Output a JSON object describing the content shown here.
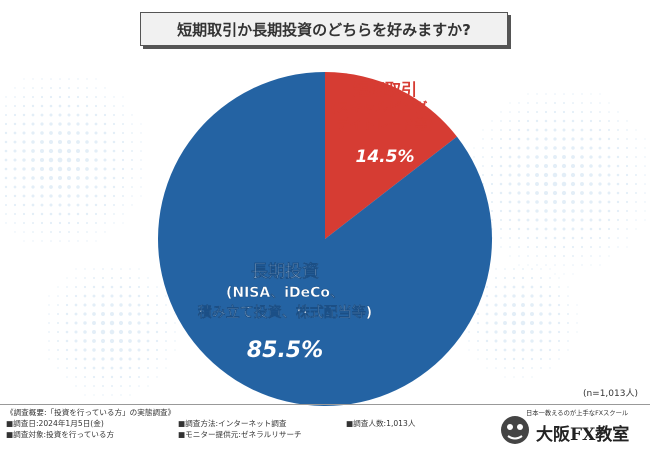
{
  "title": "短期取引か長期投資のどちらを好みますか?",
  "chart_data": {
    "type": "pie",
    "title": "短期取引か長期投資のどちらを好みますか?",
    "slices": [
      {
        "label_lines": [
          "短期取引",
          "(スキャルピング、",
          "デイトレード等)"
        ],
        "value": 14.5,
        "value_text": "14.5%",
        "color": "#d63c33"
      },
      {
        "label_lines": [
          "長期投資",
          "(NISA、iDeCo、",
          "積み立て投資、株式配当等)"
        ],
        "value": 85.5,
        "value_text": "85.5%",
        "color": "#2463a3"
      }
    ]
  },
  "sample_size": "(n=1,013人)",
  "footer": {
    "heading": "《調査概要:「投資を行っている方」の実態調査》",
    "date": "■調査日:2024年1月5日(金)",
    "method": "■調査方法:インターネット調査",
    "count": "■調査人数:1,013人",
    "target": "■調査対象:投資を行っている方",
    "provider": "■モニター提供元:ゼネラルリサーチ"
  },
  "brand": {
    "tagline": "日本一教えるのが上手なFXスクール",
    "name": "大阪FX教室"
  }
}
